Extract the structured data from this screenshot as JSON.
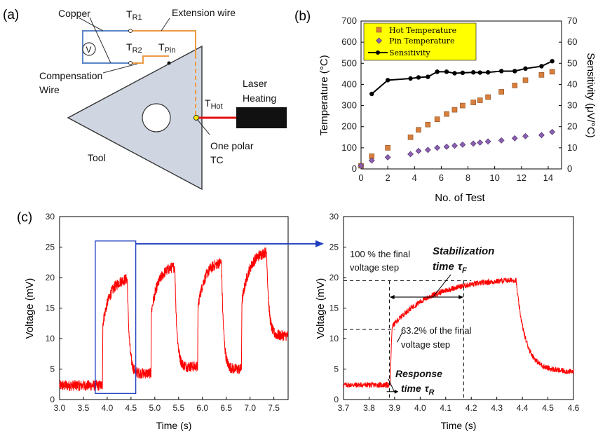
{
  "panel_labels": {
    "a": "(a)",
    "b": "(b)",
    "c": "(c)"
  },
  "schematic": {
    "copper": "Copper",
    "extension_wire": "Extension wire",
    "compensation_wire": [
      "Compensation",
      "Wire"
    ],
    "tool": "Tool",
    "laser_heating": [
      "Laser",
      "Heating"
    ],
    "one_polar_tc": [
      "One polar",
      "TC"
    ],
    "voltmeter": "V",
    "t_r1": {
      "main": "T",
      "sub": "R1"
    },
    "t_r2": {
      "main": "T",
      "sub": "R2"
    },
    "t_pin": {
      "main": "T",
      "sub": "Pin"
    },
    "t_hot": {
      "main": "T",
      "sub": "Hot"
    },
    "colors": {
      "tool_fill": "#cfd6e1",
      "copper_wire": "#5b86c8",
      "extension_wire": "#ee9a44",
      "laser_beam": "#e01010",
      "tc_point": "#f2e600"
    }
  },
  "chart_data": [
    {
      "type": "scatter",
      "panel": "(b)",
      "xlabel": "No. of Test",
      "ylabel": "Temperature (°C)",
      "y2label": "Sensitivity (μV/°C)",
      "xlim": [
        0,
        15
      ],
      "ylim": [
        0,
        700
      ],
      "y2lim": [
        0,
        70
      ],
      "xticks": [
        "0",
        "2",
        "4",
        "6",
        "8",
        "10",
        "12",
        "14"
      ],
      "yticks": [
        "0",
        "100",
        "200",
        "300",
        "400",
        "500",
        "600",
        "700"
      ],
      "y2ticks": [
        "0",
        "10",
        "20",
        "30",
        "40",
        "50",
        "60",
        "70"
      ],
      "grid": false,
      "legend": "top-left",
      "legend_bg": "#ffff00",
      "series": [
        {
          "name": "Hot Temperature",
          "axis": "left",
          "marker": "square",
          "color": "#d97f3d",
          "x": [
            0,
            0.8,
            2,
            3.7,
            4.3,
            5,
            5.7,
            6.4,
            7,
            7.6,
            8.4,
            8.9,
            9.5,
            10.5,
            11.5,
            12.3,
            13.5,
            14.3
          ],
          "y": [
            15,
            60,
            100,
            150,
            185,
            210,
            235,
            260,
            280,
            300,
            315,
            325,
            340,
            365,
            395,
            420,
            445,
            460
          ]
        },
        {
          "name": "Pin Temperature",
          "axis": "left",
          "marker": "diamond",
          "color": "#8b5fb0",
          "x": [
            0,
            0.8,
            2,
            3.7,
            4.3,
            5,
            5.7,
            6.4,
            7,
            7.6,
            8.4,
            8.9,
            9.5,
            10.5,
            11.5,
            12.3,
            13.5,
            14.3
          ],
          "y": [
            15,
            40,
            55,
            70,
            85,
            90,
            100,
            105,
            110,
            115,
            120,
            125,
            130,
            135,
            145,
            155,
            160,
            175
          ]
        },
        {
          "name": "Sensitivity",
          "axis": "right",
          "marker": "circle-line",
          "color": "#000000",
          "x": [
            0.8,
            2,
            3.7,
            4.3,
            5,
            5.7,
            6.4,
            7,
            7.6,
            8.4,
            8.9,
            9.5,
            10.5,
            11.5,
            12.3,
            13.5,
            14.3
          ],
          "y": [
            35.5,
            42,
            42.8,
            43.3,
            43.6,
            46,
            46,
            45.3,
            45.5,
            45.7,
            45.6,
            45.7,
            46.3,
            46.3,
            47.5,
            48.6,
            51
          ]
        }
      ]
    },
    {
      "type": "line",
      "panel": "(c) left",
      "xlabel": "Time (s)",
      "ylabel": "Voltage (mV)",
      "xlim": [
        3.0,
        7.8
      ],
      "ylim": [
        0,
        30
      ],
      "xticks": [
        "3.0",
        "3.5",
        "4.0",
        "4.5",
        "5.0",
        "5.5",
        "6.0",
        "6.5",
        "7.0",
        "7.5"
      ],
      "yticks": [
        "0",
        "5",
        "10",
        "15",
        "20",
        "25",
        "30"
      ],
      "color": "#ff0000",
      "grid": false,
      "pulses": [
        {
          "rise": 3.9,
          "fall": 4.42,
          "start": 12.0,
          "peak": 19.8,
          "base_before": 2.3,
          "base_after": 4.3
        },
        {
          "rise": 4.92,
          "fall": 5.42,
          "start": 14.0,
          "peak": 21.8,
          "base_before": 4.3,
          "base_after": 5.4
        },
        {
          "rise": 5.9,
          "fall": 6.4,
          "start": 15.0,
          "peak": 22.5,
          "base_before": 5.4,
          "base_after": 5.0
        },
        {
          "rise": 6.82,
          "fall": 7.35,
          "start": 15.5,
          "peak": 24.2,
          "base_before": 5.0,
          "base_after": 10.5
        }
      ],
      "zoom_box": {
        "x": [
          3.75,
          4.6
        ],
        "y": [
          1,
          26
        ],
        "color": "#1f3fbf"
      }
    },
    {
      "type": "line",
      "panel": "(c) right",
      "xlabel": "Time (s)",
      "ylabel": "Voltage (mV)",
      "xlim": [
        3.7,
        4.6
      ],
      "ylim": [
        0,
        30
      ],
      "xticks": [
        "3.7",
        "3.8",
        "3.9",
        "4.0",
        "4.1",
        "4.2",
        "4.3",
        "4.4",
        "4.5",
        "4.6"
      ],
      "yticks": [
        "0",
        "5",
        "10",
        "15",
        "20",
        "25",
        "30"
      ],
      "color": "#ff0000",
      "grid": false,
      "final_voltage": 19.5,
      "voltage_63": 11.5,
      "response_start": 3.88,
      "response_end": 3.9,
      "stabilization_end": 4.17,
      "annotations": {
        "line_100": [
          "100 % the final",
          "voltage step"
        ],
        "line_63": [
          "63.2% of the final",
          "voltage step"
        ],
        "stab_main": "Stabilization",
        "stab_time": "time",
        "stab_sym": "τ",
        "stab_sub": "F",
        "resp_main": "Response",
        "resp_time": "time",
        "resp_sym": "τ",
        "resp_sub": "R"
      }
    }
  ]
}
